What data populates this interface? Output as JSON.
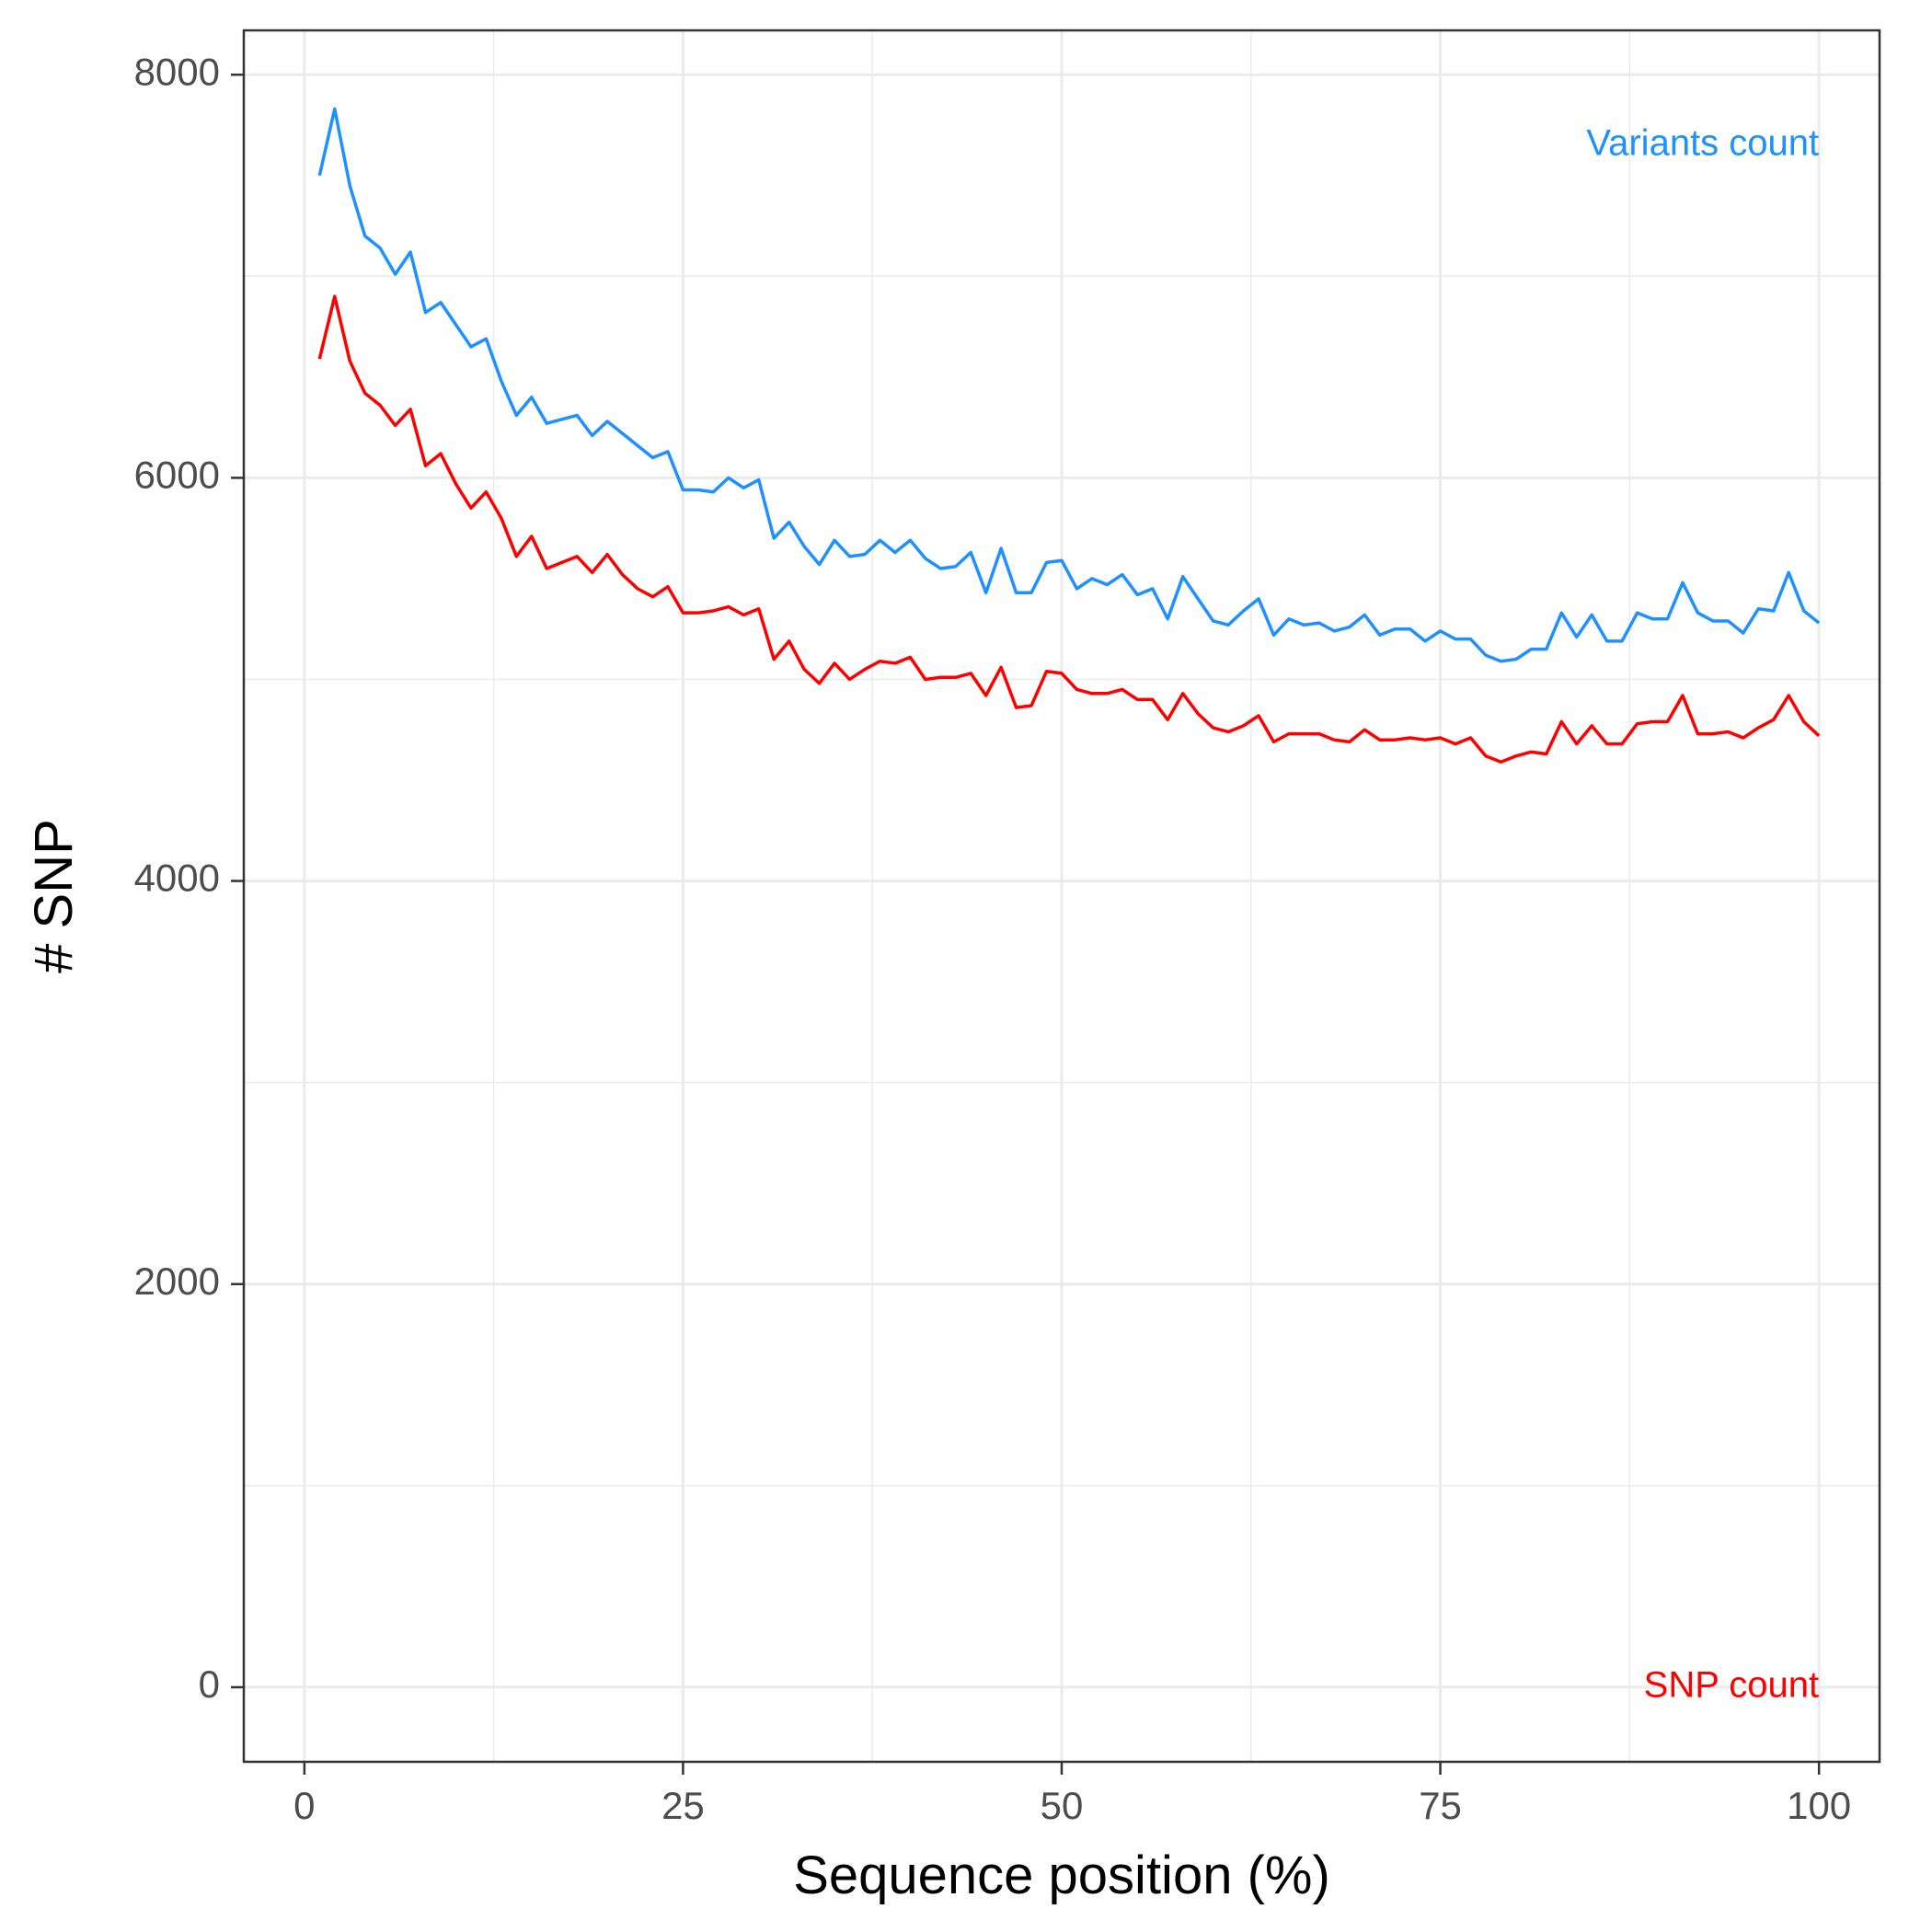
{
  "chart_data": {
    "type": "line",
    "title": "",
    "xlabel": "Sequence position (%)",
    "ylabel": "# SNP",
    "xlim": [
      -4,
      104
    ],
    "ylim": [
      -370,
      8220
    ],
    "x_ticks": [
      0,
      25,
      50,
      75,
      100
    ],
    "y_ticks": [
      0,
      2000,
      4000,
      6000,
      8000
    ],
    "grid": true,
    "x": [
      1,
      2,
      3,
      4,
      5,
      6,
      7,
      8,
      9,
      10,
      11,
      12,
      13,
      14,
      15,
      16,
      17,
      18,
      19,
      20,
      21,
      22,
      23,
      24,
      25,
      26,
      27,
      28,
      29,
      30,
      31,
      32,
      33,
      34,
      35,
      36,
      37,
      38,
      39,
      40,
      41,
      42,
      43,
      44,
      45,
      46,
      47,
      48,
      49,
      50,
      51,
      52,
      53,
      54,
      55,
      56,
      57,
      58,
      59,
      60,
      61,
      62,
      63,
      64,
      65,
      66,
      67,
      68,
      69,
      70,
      71,
      72,
      73,
      74,
      75,
      76,
      77,
      78,
      79,
      80,
      81,
      82,
      83,
      84,
      85,
      86,
      87,
      88,
      89,
      90,
      91,
      92,
      93,
      94,
      95,
      96,
      97,
      98,
      99,
      100
    ],
    "series": [
      {
        "name": "Variants count",
        "color": "#1e90ff",
        "values": [
          7500,
          7830,
          7450,
          7200,
          7140,
          7010,
          7120,
          6820,
          6870,
          6760,
          6650,
          6690,
          6480,
          6310,
          6400,
          6270,
          6290,
          6310,
          6210,
          6280,
          6220,
          6160,
          6100,
          6130,
          5940,
          5940,
          5930,
          6000,
          5950,
          5990,
          5700,
          5780,
          5660,
          5570,
          5690,
          5610,
          5620,
          5690,
          5630,
          5690,
          5600,
          5550,
          5560,
          5630,
          5430,
          5650,
          5430,
          5430,
          5580,
          5590,
          5450,
          5500,
          5470,
          5520,
          5420,
          5450,
          5300,
          5510,
          5400,
          5290,
          5270,
          5340,
          5400,
          5220,
          5300,
          5270,
          5280,
          5240,
          5260,
          5320,
          5220,
          5250,
          5250,
          5190,
          5240,
          5200,
          5200,
          5120,
          5090,
          5100,
          5150,
          5150,
          5330,
          5210,
          5320,
          5190,
          5190,
          5330,
          5300,
          5300,
          5480,
          5330,
          5290,
          5290,
          5230,
          5350,
          5340,
          5530,
          5340,
          5280
        ]
      },
      {
        "name": "SNP count",
        "color": "#ff0000",
        "values": [
          6590,
          6900,
          6580,
          6420,
          6360,
          6260,
          6340,
          6060,
          6120,
          5970,
          5850,
          5930,
          5800,
          5610,
          5710,
          5550,
          5580,
          5610,
          5530,
          5620,
          5520,
          5450,
          5410,
          5460,
          5330,
          5330,
          5340,
          5360,
          5320,
          5350,
          5100,
          5190,
          5050,
          4980,
          5080,
          5000,
          5050,
          5090,
          5080,
          5110,
          5000,
          5010,
          5010,
          5030,
          4920,
          5060,
          4860,
          4870,
          5040,
          5030,
          4950,
          4930,
          4930,
          4950,
          4900,
          4900,
          4800,
          4930,
          4830,
          4760,
          4740,
          4770,
          4820,
          4690,
          4730,
          4730,
          4730,
          4700,
          4690,
          4750,
          4700,
          4700,
          4710,
          4700,
          4710,
          4680,
          4710,
          4620,
          4590,
          4620,
          4640,
          4630,
          4790,
          4680,
          4770,
          4680,
          4680,
          4780,
          4790,
          4790,
          4920,
          4730,
          4730,
          4740,
          4710,
          4760,
          4800,
          4920,
          4790,
          4720
        ]
      }
    ],
    "annotations": [
      {
        "text": "Variants count",
        "color": "#1e90ff",
        "x": 100,
        "y": 7650
      },
      {
        "text": "SNP count",
        "color": "#ff0000",
        "x": 100,
        "y": 0
      }
    ]
  }
}
